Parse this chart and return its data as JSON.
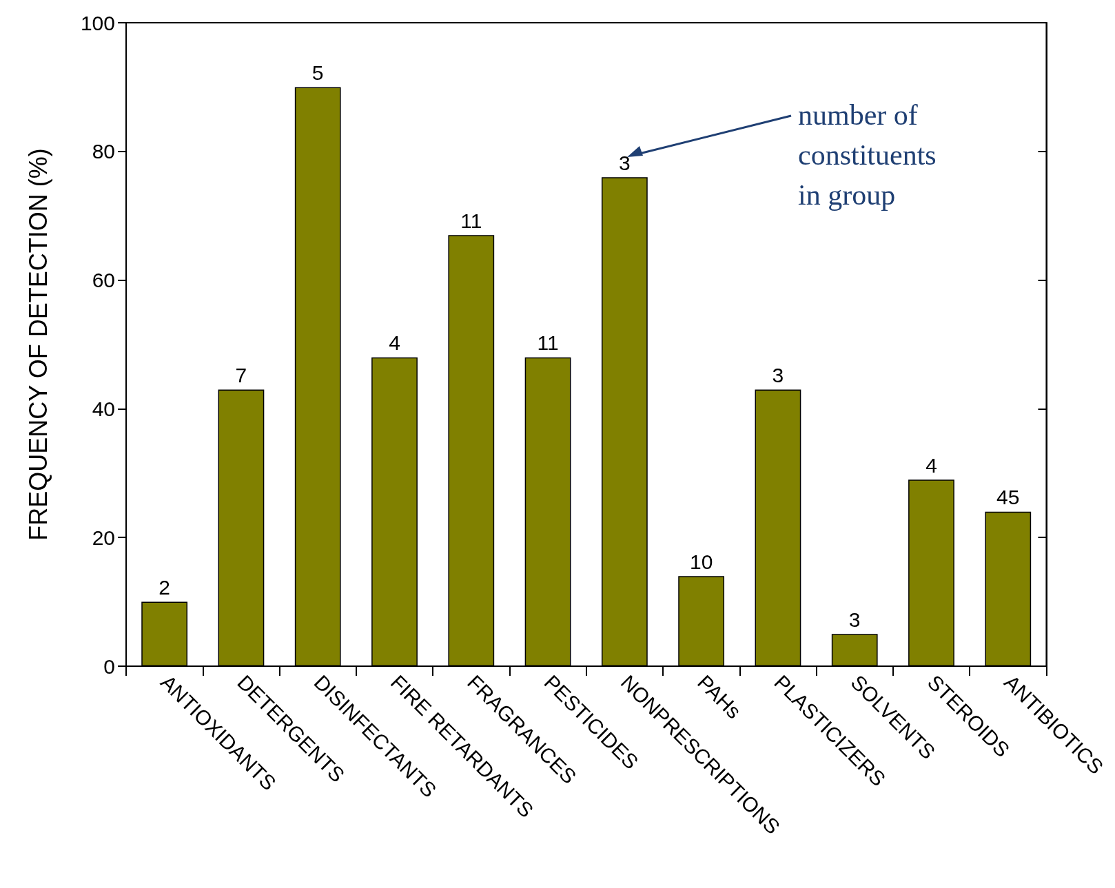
{
  "chart_data": {
    "type": "bar",
    "ylabel": "FREQUENCY OF DETECTION (%)",
    "categories": [
      "ANTIOXIDANTS",
      "DETERGENTS",
      "DISINFECTANTS",
      "FIRE RETARDANTS",
      "FRAGRANCES",
      "PESTICIDES",
      "NONPRESCRIPTIONS",
      "PAHs",
      "PLASTICIZERS",
      "SOLVENTS",
      "STEROIDS",
      "ANTIBIOTICS"
    ],
    "values": [
      10,
      43,
      90,
      48,
      67,
      48,
      76,
      14,
      43,
      5,
      29,
      24
    ],
    "color": "#808000",
    "ylim": [
      0,
      100
    ],
    "yticks": [
      0,
      20,
      40,
      60,
      80,
      100
    ],
    "grid": false,
    "annotations": [
      "number of\nconstituents\nin group",
      {
        "text": "2",
        "x": "ANTIOXIDANTS",
        "y": 10
      },
      {
        "text": "7",
        "x": "DETERGENTS",
        "y": 43
      },
      {
        "text": "5",
        "x": "DISINFECTANTS",
        "y": 90
      },
      {
        "text": "4",
        "x": "FIRE RETARDANTS",
        "y": 48
      },
      {
        "text": "11",
        "x": "FRAGRANCES",
        "y": 67
      },
      {
        "text": "11",
        "x": "PESTICIDES",
        "y": 48
      },
      {
        "text": "3",
        "x": "NONPRESCRIPTIONS",
        "y": 76
      },
      {
        "text": "10",
        "x": "PAHs",
        "y": 14
      },
      {
        "text": "3",
        "x": "PLASTICIZERS",
        "y": 43
      },
      {
        "text": "3",
        "x": "SOLVENTS",
        "y": 5
      },
      {
        "text": "4",
        "x": "STEROIDS",
        "y": 29
      },
      {
        "text": "45",
        "x": "ANTIBIOTICS",
        "y": 24
      }
    ]
  }
}
